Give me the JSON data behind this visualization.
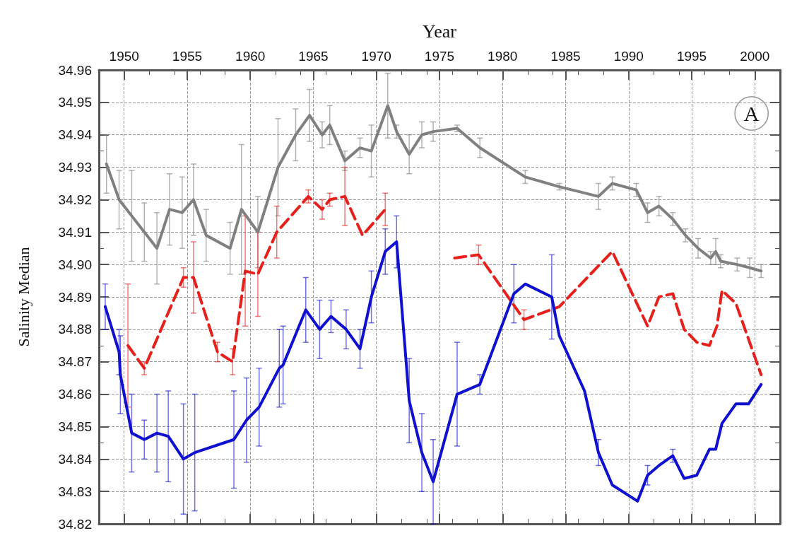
{
  "chart_data": {
    "type": "line",
    "xlabel": "Year",
    "ylabel": "Salinity Median",
    "xlim": [
      1948,
      2002
    ],
    "xticks": [
      1950,
      1955,
      1960,
      1965,
      1970,
      1975,
      1980,
      1985,
      1990,
      1995,
      2000
    ],
    "ylim": [
      34.82,
      34.96
    ],
    "yticks": [
      {
        "value": 34.82,
        "label": "34.82"
      },
      {
        "value": 34.83,
        "label": "34.83"
      },
      {
        "value": 34.84,
        "label": "34.84"
      },
      {
        "value": 34.85,
        "label": "34.85"
      },
      {
        "value": 34.86,
        "label": "34.86"
      },
      {
        "value": 34.87,
        "label": "34.87"
      },
      {
        "value": 34.88,
        "label": "34.88"
      },
      {
        "value": 34.89,
        "label": "34.89"
      },
      {
        "value": 34.9,
        "label": "34.90"
      },
      {
        "value": 34.91,
        "label": "34.91"
      },
      {
        "value": 34.92,
        "label": "34.92"
      },
      {
        "value": 34.93,
        "label": "34.93"
      },
      {
        "value": 34.94,
        "label": "34.94"
      },
      {
        "value": 34.95,
        "label": "34.95"
      },
      {
        "value": 34.96,
        "label": "34.96"
      }
    ],
    "grid": true,
    "marker": "none",
    "annotations": [
      "A"
    ],
    "series": [
      {
        "color": "#808080",
        "line_style": "solid",
        "x": [
          1948.6,
          1949.6,
          1950.6,
          1951.6,
          1952.6,
          1953.6,
          1954.6,
          1955.5,
          1956.5,
          1958.4,
          1959.3,
          1960.6,
          1962.2,
          1963.6,
          1964.7,
          1965.7,
          1966.3,
          1967.5,
          1968.7,
          1969.6,
          1970.9,
          1971.6,
          1972.6,
          1973.6,
          1974.5,
          1976.4,
          1978.2,
          1981.8,
          1984.5,
          1987.6,
          1988.7,
          1990.6,
          1991.5,
          1992.4,
          1993.5,
          1994.5,
          1995.5,
          1996.5,
          1996.9,
          1997.3,
          1998.6,
          1999.6,
          2000.5
        ],
        "values": [
          34.931,
          34.92,
          34.915,
          34.91,
          34.905,
          34.917,
          34.916,
          34.92,
          34.909,
          34.905,
          34.917,
          34.91,
          34.93,
          34.94,
          34.946,
          34.94,
          34.943,
          34.932,
          34.936,
          34.935,
          34.949,
          34.941,
          34.934,
          34.94,
          34.941,
          34.942,
          34.936,
          34.927,
          34.924,
          34.921,
          34.925,
          34.923,
          34.916,
          34.918,
          34.914,
          34.909,
          34.905,
          34.902,
          34.904,
          34.901,
          34.9,
          34.899,
          34.898
        ],
        "errors": [
          0.009,
          0.009,
          0.014,
          0.009,
          0.011,
          0.011,
          0.011,
          0.011,
          0.008,
          0.008,
          0.02,
          0.011,
          0.015,
          0.008,
          0.008,
          0.004,
          0.006,
          0.003,
          0.003,
          0.008,
          0.01,
          0.002,
          0.006,
          0.004,
          0.003,
          0.001,
          0.003,
          0.002,
          0.001,
          0.004,
          0.002,
          0.002,
          0.003,
          0.003,
          0.002,
          0.002,
          0.003,
          0.002,
          0.004,
          0.002,
          0.002,
          0.003,
          0.002
        ]
      },
      {
        "color": "#e8201c",
        "line_style": "dashed",
        "x": [
          1950.3,
          1951.6,
          1954.7,
          1955.5,
          1957.4,
          1958.6,
          1959.6,
          1960.6,
          1962.1,
          1964.6,
          1965.7,
          1966.3,
          1967.5,
          1968.9,
          1970.7,
          1973.5,
          1976.2,
          1978.1,
          1981.7,
          1984.5,
          1988.7,
          1991.5,
          1992.4,
          1993.5,
          1994.4,
          1995.4,
          1996.4,
          1997.0,
          1997.4,
          1998.5,
          2000.5
        ],
        "values": [
          34.875,
          34.868,
          34.896,
          34.896,
          34.873,
          34.87,
          34.898,
          34.897,
          34.91,
          34.921,
          34.917,
          34.92,
          34.921,
          34.909,
          34.917,
          null,
          34.902,
          34.903,
          34.883,
          34.887,
          34.904,
          34.881,
          34.89,
          34.891,
          34.88,
          34.876,
          34.875,
          34.881,
          34.892,
          34.888,
          34.866
        ],
        "errors": [
          0.019,
          0.002,
          0.003,
          0.011,
          0.003,
          0.004,
          0.017,
          0.013,
          0.008,
          0.002,
          0.003,
          0.002,
          0.009,
          null,
          0.005,
          null,
          null,
          0.003,
          0.003,
          null,
          null,
          null,
          null,
          null,
          null,
          null,
          null,
          null,
          null,
          null,
          null
        ]
      },
      {
        "color": "#1010d0",
        "line_style": "solid",
        "x": [
          1948.5,
          1949.6,
          1949.7,
          1950.6,
          1951.6,
          1952.6,
          1953.5,
          1954.7,
          1955.6,
          1958.7,
          1959.7,
          1960.7,
          1962.3,
          1962.6,
          1964.4,
          1965.5,
          1966.4,
          1967.6,
          1968.7,
          1969.6,
          1970.7,
          1971.6,
          1972.6,
          1973.6,
          1974.5,
          1976.4,
          1978.2,
          1980.9,
          1981.8,
          1983.9,
          1984.5,
          1986.5,
          1987.6,
          1988.7,
          1990.7,
          1991.5,
          1992.4,
          1993.5,
          1994.4,
          1995.4,
          1996.4,
          1996.9,
          1997.4,
          1998.5,
          1999.5,
          2000.5
        ],
        "values": [
          34.887,
          34.873,
          34.866,
          34.848,
          34.846,
          34.848,
          34.847,
          34.84,
          34.842,
          34.846,
          34.852,
          34.856,
          34.868,
          34.869,
          34.886,
          34.88,
          34.884,
          34.88,
          34.874,
          34.89,
          34.904,
          34.907,
          34.858,
          34.842,
          34.833,
          34.86,
          34.863,
          34.891,
          34.894,
          34.89,
          34.878,
          34.861,
          34.842,
          34.832,
          34.827,
          34.835,
          34.838,
          34.841,
          34.834,
          34.835,
          34.843,
          34.843,
          34.851,
          34.857,
          34.857,
          34.863
        ],
        "errors": [
          0.007,
          0.007,
          0.012,
          0.012,
          0.006,
          0.012,
          0.014,
          0.017,
          0.018,
          0.015,
          0.013,
          0.012,
          0.012,
          0.012,
          0.01,
          0.009,
          0.005,
          0.006,
          0.006,
          0.008,
          0.007,
          0.008,
          0.013,
          0.012,
          0.013,
          0.016,
          0.003,
          0.009,
          null,
          0.013,
          null,
          null,
          0.004,
          null,
          null,
          0.003,
          null,
          0.002,
          null,
          null,
          null,
          null,
          null,
          null,
          null,
          null
        ]
      }
    ]
  }
}
